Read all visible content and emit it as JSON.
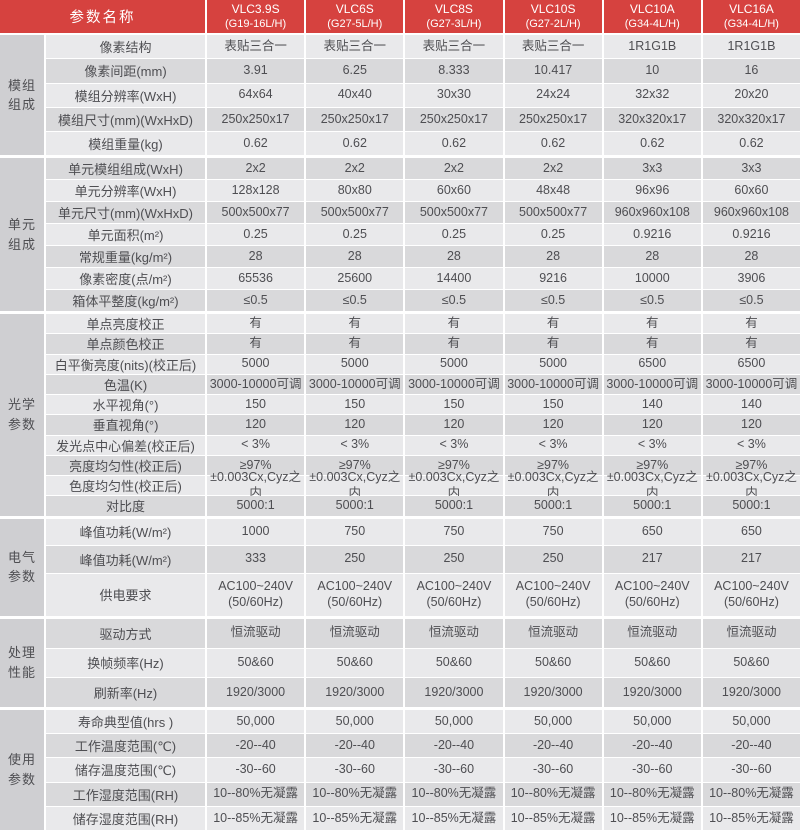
{
  "colors": {
    "header_red": "#d6423f",
    "row_light": "#e9e9eb",
    "row_dark": "#d9d9db",
    "group_bg": "#cfcfd2",
    "text": "#4e4e52",
    "header_text": "#ffffff"
  },
  "header": {
    "param_label": "参数名称",
    "models": [
      {
        "name": "VLC3.9S",
        "code": "(G19-16L/H)"
      },
      {
        "name": "VLC6S",
        "code": "(G27-5L/H)"
      },
      {
        "name": "VLC8S",
        "code": "(G27-3L/H)"
      },
      {
        "name": "VLC10S",
        "code": "(G27-2L/H)"
      },
      {
        "name": "VLC10A",
        "code": "(G34-4L/H)"
      },
      {
        "name": "VLC16A",
        "code": "(G34-4L/H)"
      }
    ]
  },
  "groups": [
    {
      "label": "模组组成",
      "rows": [
        {
          "param": "像素结构",
          "values": [
            "表贴三合一",
            "表贴三合一",
            "表贴三合一",
            "表贴三合一",
            "1R1G1B",
            "1R1G1B"
          ]
        },
        {
          "param": "像素间距(mm)",
          "values": [
            "3.91",
            "6.25",
            "8.333",
            "10.417",
            "10",
            "16"
          ]
        },
        {
          "param": "模组分辨率(WxH)",
          "values": [
            "64x64",
            "40x40",
            "30x30",
            "24x24",
            "32x32",
            "20x20"
          ]
        },
        {
          "param": "模组尺寸(mm)(WxHxD)",
          "values": [
            "250x250x17",
            "250x250x17",
            "250x250x17",
            "250x250x17",
            "320x320x17",
            "320x320x17"
          ]
        },
        {
          "param": "模组重量(kg)",
          "values": [
            "0.62",
            "0.62",
            "0.62",
            "0.62",
            "0.62",
            "0.62"
          ]
        }
      ]
    },
    {
      "label": "单元组成",
      "rows": [
        {
          "param": "单元模组组成(WxH)",
          "values": [
            "2x2",
            "2x2",
            "2x2",
            "2x2",
            "3x3",
            "3x3"
          ]
        },
        {
          "param": "单元分辨率(WxH)",
          "values": [
            "128x128",
            "80x80",
            "60x60",
            "48x48",
            "96x96",
            "60x60"
          ]
        },
        {
          "param": "单元尺寸(mm)(WxHxD)",
          "values": [
            "500x500x77",
            "500x500x77",
            "500x500x77",
            "500x500x77",
            "960x960x108",
            "960x960x108"
          ]
        },
        {
          "param": "单元面积(m²)",
          "values": [
            "0.25",
            "0.25",
            "0.25",
            "0.25",
            "0.9216",
            "0.9216"
          ]
        },
        {
          "param": "常规重量(kg/m²)",
          "values": [
            "28",
            "28",
            "28",
            "28",
            "28",
            "28"
          ]
        },
        {
          "param": "像素密度(点/m²)",
          "values": [
            "65536",
            "25600",
            "14400",
            "9216",
            "10000",
            "3906"
          ]
        },
        {
          "param": "箱体平整度(kg/m²)",
          "values": [
            "≤0.5",
            "≤0.5",
            "≤0.5",
            "≤0.5",
            "≤0.5",
            "≤0.5"
          ]
        }
      ]
    },
    {
      "label": "光学参数",
      "rows": [
        {
          "param": "单点亮度校正",
          "values": [
            "有",
            "有",
            "有",
            "有",
            "有",
            "有"
          ]
        },
        {
          "param": "单点颜色校正",
          "values": [
            "有",
            "有",
            "有",
            "有",
            "有",
            "有"
          ]
        },
        {
          "param": "白平衡亮度(nits)(校正后)",
          "values": [
            "5000",
            "5000",
            "5000",
            "5000",
            "6500",
            "6500"
          ]
        },
        {
          "param": "色温(K)",
          "values": [
            "3000-10000可调",
            "3000-10000可调",
            "3000-10000可调",
            "3000-10000可调",
            "3000-10000可调",
            "3000-10000可调"
          ]
        },
        {
          "param": "水平视角(°)",
          "values": [
            "150",
            "150",
            "150",
            "150",
            "140",
            "140"
          ]
        },
        {
          "param": "垂直视角(°)",
          "values": [
            "120",
            "120",
            "120",
            "120",
            "120",
            "120"
          ]
        },
        {
          "param": "发光点中心偏差(校正后)",
          "values": [
            "< 3%",
            "< 3%",
            "< 3%",
            "< 3%",
            "< 3%",
            "< 3%"
          ]
        },
        {
          "param": "亮度均匀性(校正后)",
          "values": [
            "≥97%",
            "≥97%",
            "≥97%",
            "≥97%",
            "≥97%",
            "≥97%"
          ]
        },
        {
          "param": "色度均匀性(校正后)",
          "values": [
            "±0.003Cx,Cyz之内",
            "±0.003Cx,Cyz之内",
            "±0.003Cx,Cyz之内",
            "±0.003Cx,Cyz之内",
            "±0.003Cx,Cyz之内",
            "±0.003Cx,Cyz之内"
          ]
        },
        {
          "param": "对比度",
          "values": [
            "5000:1",
            "5000:1",
            "5000:1",
            "5000:1",
            "5000:1",
            "5000:1"
          ]
        }
      ]
    },
    {
      "label": "电气参数",
      "rows": [
        {
          "param": "峰值功耗(W/m²)",
          "values": [
            "1000",
            "750",
            "750",
            "750",
            "650",
            "650"
          ]
        },
        {
          "param": "峰值功耗(W/m²)",
          "values": [
            "333",
            "250",
            "250",
            "250",
            "217",
            "217"
          ]
        },
        {
          "param": "供电要求",
          "values": [
            "AC100~240V\n(50/60Hz)",
            "AC100~240V\n(50/60Hz)",
            "AC100~240V\n(50/60Hz)",
            "AC100~240V\n(50/60Hz)",
            "AC100~240V\n(50/60Hz)",
            "AC100~240V\n(50/60Hz)"
          ]
        }
      ]
    },
    {
      "label": "处理性能",
      "rows": [
        {
          "param": "驱动方式",
          "values": [
            "恒流驱动",
            "恒流驱动",
            "恒流驱动",
            "恒流驱动",
            "恒流驱动",
            "恒流驱动"
          ]
        },
        {
          "param": "换帧频率(Hz)",
          "values": [
            "50&60",
            "50&60",
            "50&60",
            "50&60",
            "50&60",
            "50&60"
          ]
        },
        {
          "param": "刷新率(Hz)",
          "values": [
            "1920/3000",
            "1920/3000",
            "1920/3000",
            "1920/3000",
            "1920/3000",
            "1920/3000"
          ]
        }
      ]
    },
    {
      "label": "使用参数",
      "rows": [
        {
          "param": "寿命典型值(hrs )",
          "values": [
            "50,000",
            "50,000",
            "50,000",
            "50,000",
            "50,000",
            "50,000"
          ]
        },
        {
          "param": "工作温度范围(℃)",
          "values": [
            "-20--40",
            "-20--40",
            "-20--40",
            "-20--40",
            "-20--40",
            "-20--40"
          ]
        },
        {
          "param": "储存温度范围(℃)",
          "values": [
            "-30--60",
            "-30--60",
            "-30--60",
            "-30--60",
            "-30--60",
            "-30--60"
          ]
        },
        {
          "param": "工作湿度范围(RH)",
          "values": [
            "10--80%无凝露",
            "10--80%无凝露",
            "10--80%无凝露",
            "10--80%无凝露",
            "10--80%无凝露",
            "10--80%无凝露"
          ]
        },
        {
          "param": "储存湿度范围(RH)",
          "values": [
            "10--85%无凝露",
            "10--85%无凝露",
            "10--85%无凝露",
            "10--85%无凝露",
            "10--85%无凝露",
            "10--85%无凝露"
          ]
        }
      ]
    }
  ]
}
